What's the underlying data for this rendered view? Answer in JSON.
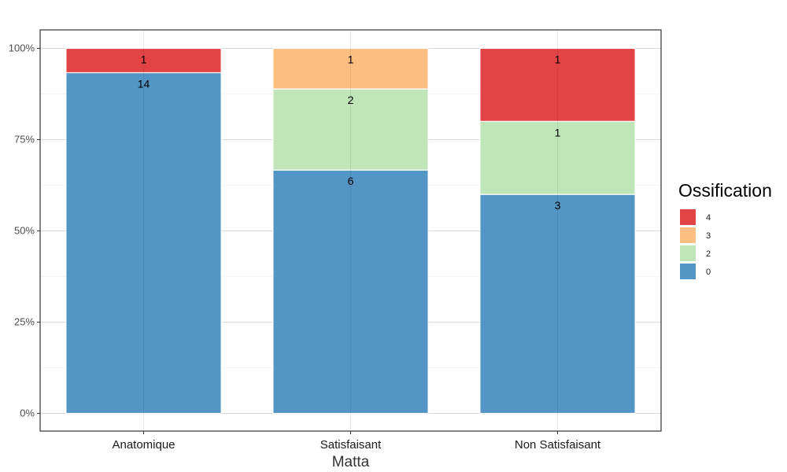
{
  "chart_data": {
    "type": "bar",
    "stacked": "percent",
    "xlabel": "Matta",
    "ylabel": "",
    "ylim": [
      0,
      1
    ],
    "y_ticks": [
      {
        "value": 0,
        "label": "0%"
      },
      {
        "value": 0.25,
        "label": "25%"
      },
      {
        "value": 0.5,
        "label": "50%"
      },
      {
        "value": 0.75,
        "label": "75%"
      },
      {
        "value": 1,
        "label": "100%"
      }
    ],
    "categories": [
      "Anatomique",
      "Satisfaisant",
      "Non Satisfaisant"
    ],
    "series": [
      {
        "name": "0",
        "color": "#4a8fc2",
        "values": [
          14,
          6,
          3
        ]
      },
      {
        "name": "2",
        "color": "#bce4b5",
        "values": [
          0,
          2,
          1
        ]
      },
      {
        "name": "3",
        "color": "#fdbb7b",
        "values": [
          0,
          1,
          0
        ]
      },
      {
        "name": "4",
        "color": "#e03a3c",
        "values": [
          1,
          0,
          1
        ]
      }
    ],
    "legend": {
      "title": "Ossification",
      "position": "right",
      "order": [
        "4",
        "3",
        "2",
        "0"
      ]
    },
    "grid": true
  }
}
